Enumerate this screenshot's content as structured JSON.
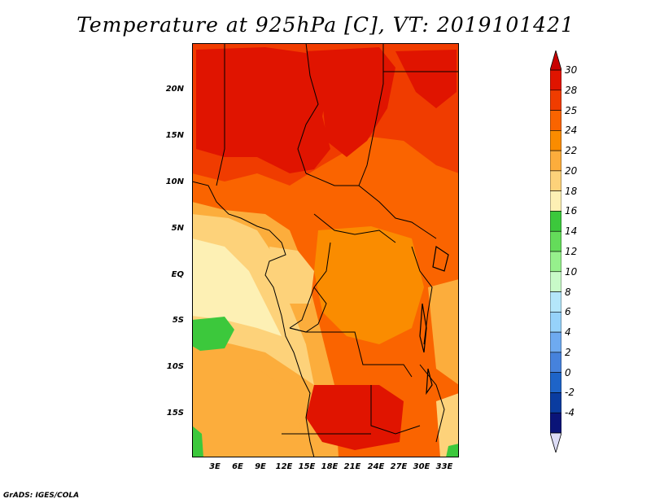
{
  "title": "Temperature at 925hPa [C], VT: 2019101421",
  "credit": "GrADS: IGES/COLA",
  "lat_labels": [
    "20N",
    "15N",
    "10N",
    "5N",
    "EQ",
    "5S",
    "10S",
    "15S"
  ],
  "lon_labels": [
    "3E",
    "6E",
    "9E",
    "12E",
    "15E",
    "18E",
    "21E",
    "24E",
    "27E",
    "30E",
    "33E"
  ],
  "colorbar": {
    "labels": [
      "30",
      "28",
      "25",
      "24",
      "22",
      "20",
      "18",
      "16",
      "14",
      "12",
      "10",
      "8",
      "6",
      "4",
      "2",
      "0",
      "-2",
      "-4"
    ],
    "colors": [
      "#e01400",
      "#f03c00",
      "#fa6400",
      "#fa8c00",
      "#fcad3c",
      "#fdd27a",
      "#fdf0b4",
      "#3cc83c",
      "#64dc5a",
      "#96f08c",
      "#c8fac8",
      "#b4e6fa",
      "#96d2fa",
      "#6eaaf0",
      "#4682dc",
      "#1e64c8",
      "#0a3ca0",
      "#0a1478"
    ],
    "top_arrow_color": "#c80000",
    "bottom_arrow_color": "#dcdcf5"
  },
  "map_colors": {
    "hot": "#e01400",
    "warm": "#f03c00",
    "orange": "#fa6400",
    "amber": "#fa8c00",
    "light_orange": "#fcad3c",
    "tan": "#fdd27a",
    "pale": "#fdf0b4",
    "green": "#3cc83c"
  }
}
